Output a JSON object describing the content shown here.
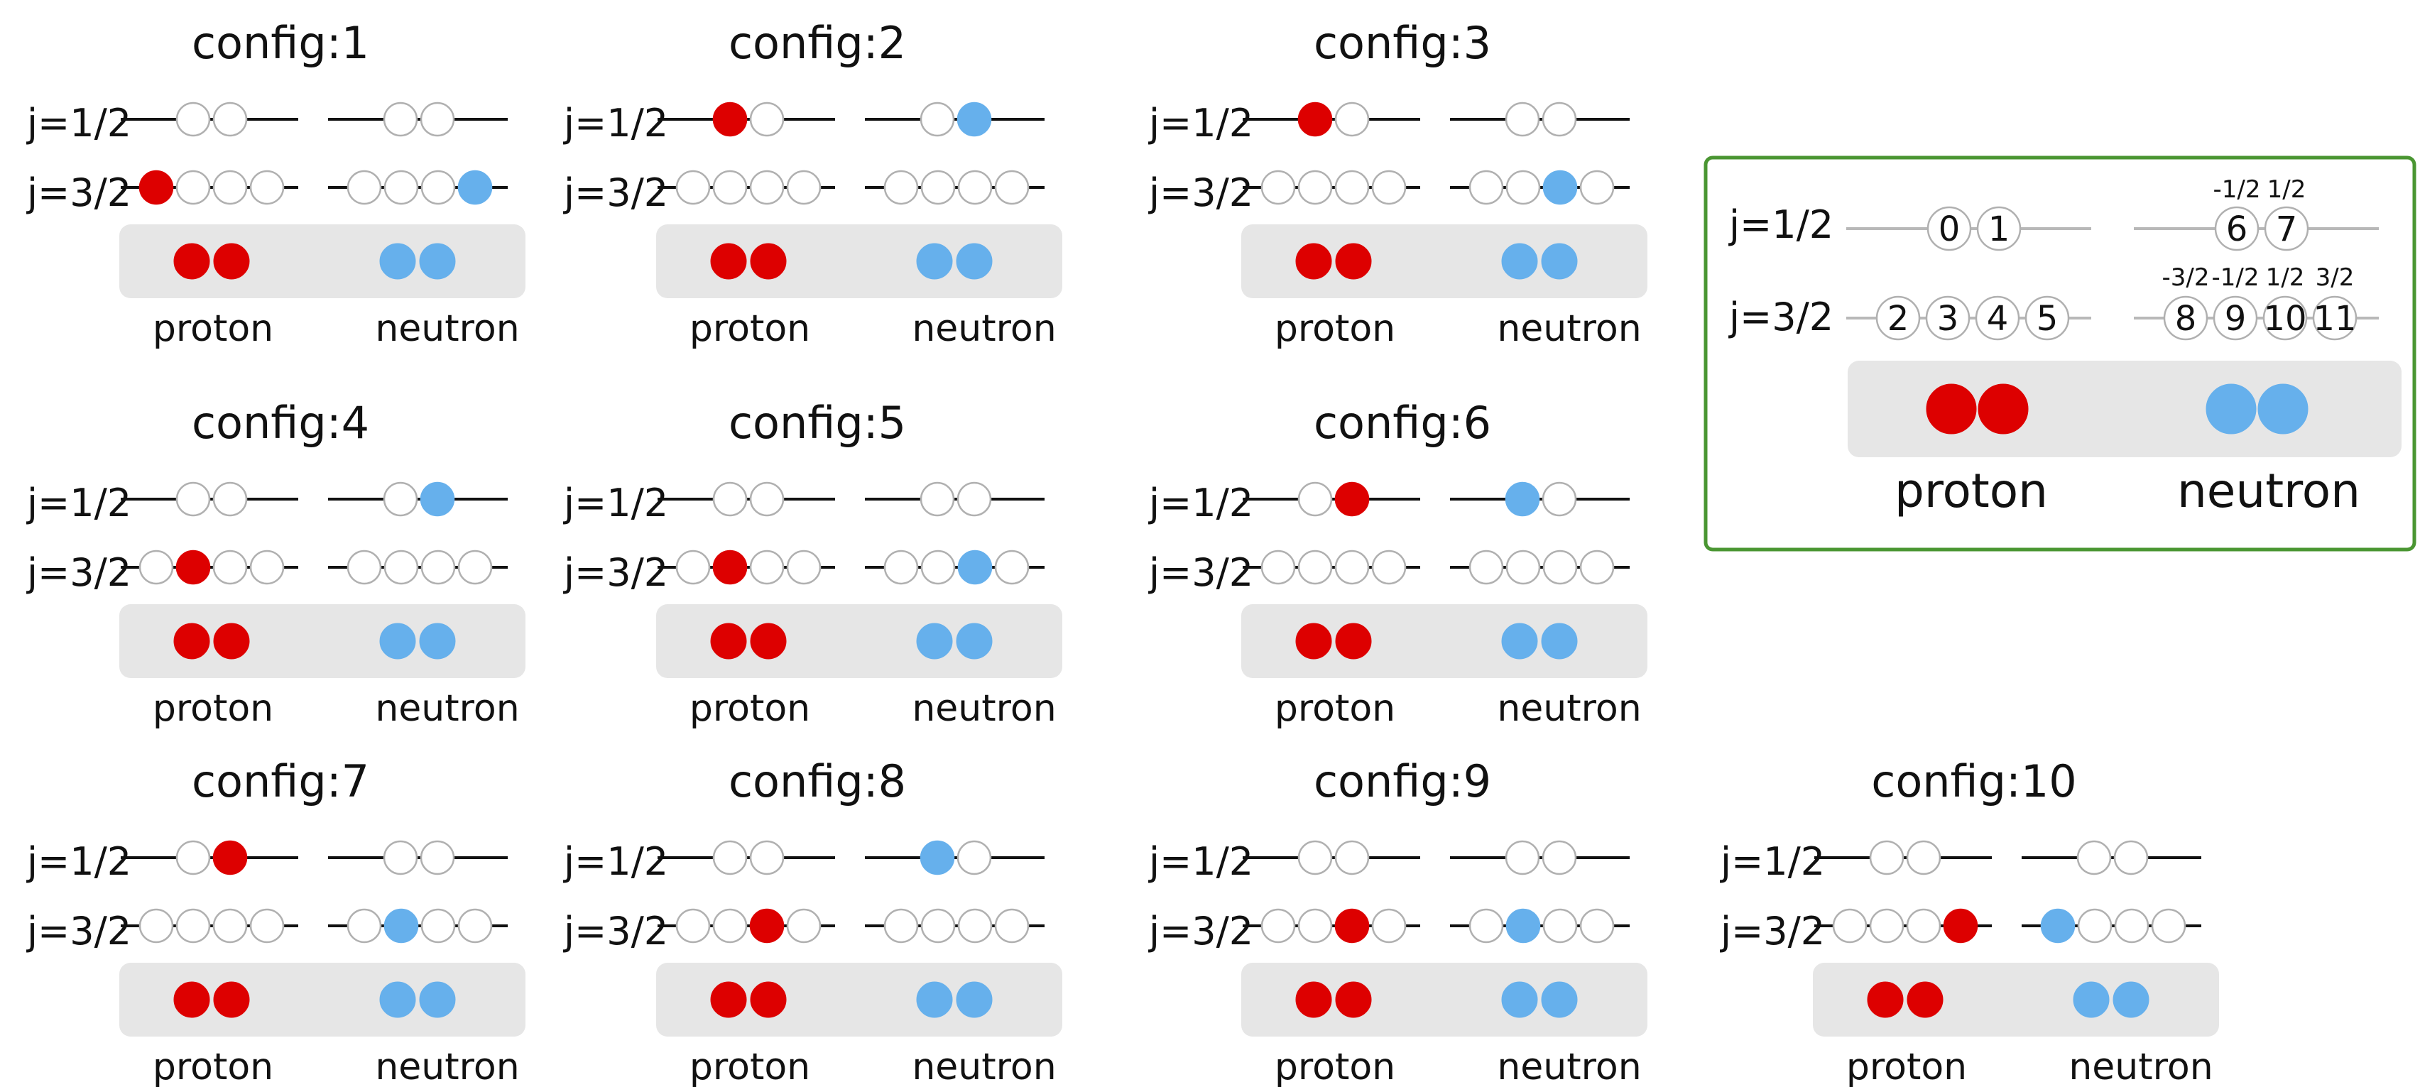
{
  "colors": {
    "proton": "#dd0000",
    "neutron": "#66b0ec",
    "empty_orbit": "#b0b0b0",
    "legend_border": "#4a9632",
    "panel_bg": "#e6e6e6"
  },
  "labels": {
    "j_half": "j=1/2",
    "j_three_half": "j=3/2",
    "proton": "proton",
    "neutron": "neutron"
  },
  "configs": [
    {
      "title": "config:1",
      "proton_j12": [],
      "proton_j32": [
        0
      ],
      "neutron_j12": [],
      "neutron_j32": [
        3
      ]
    },
    {
      "title": "config:2",
      "proton_j12": [
        0
      ],
      "proton_j32": [],
      "neutron_j12": [
        1
      ],
      "neutron_j32": []
    },
    {
      "title": "config:3",
      "proton_j12": [
        0
      ],
      "proton_j32": [],
      "neutron_j12": [],
      "neutron_j32": [
        2
      ]
    },
    {
      "title": "config:4",
      "proton_j12": [],
      "proton_j32": [
        1
      ],
      "neutron_j12": [
        1
      ],
      "neutron_j32": []
    },
    {
      "title": "config:5",
      "proton_j12": [],
      "proton_j32": [
        1
      ],
      "neutron_j12": [],
      "neutron_j32": [
        2
      ]
    },
    {
      "title": "config:6",
      "proton_j12": [
        1
      ],
      "proton_j32": [],
      "neutron_j12": [
        0
      ],
      "neutron_j32": []
    },
    {
      "title": "config:7",
      "proton_j12": [
        1
      ],
      "proton_j32": [],
      "neutron_j12": [],
      "neutron_j32": [
        1
      ]
    },
    {
      "title": "config:8",
      "proton_j12": [],
      "proton_j32": [
        2
      ],
      "neutron_j12": [
        0
      ],
      "neutron_j32": []
    },
    {
      "title": "config:9",
      "proton_j12": [],
      "proton_j32": [
        2
      ],
      "neutron_j12": [],
      "neutron_j32": [
        1
      ]
    },
    {
      "title": "config:10",
      "proton_j12": [],
      "proton_j32": [
        3
      ],
      "neutron_j12": [],
      "neutron_j32": [
        0
      ]
    }
  ],
  "legend": {
    "j_half": "j=1/2",
    "j_three_half": "j=3/2",
    "proton_j12_indices": [
      "0",
      "1"
    ],
    "proton_j32_indices": [
      "2",
      "3",
      "4",
      "5"
    ],
    "neutron_j12_indices": [
      "6",
      "7"
    ],
    "neutron_j32_indices": [
      "8",
      "9",
      "10",
      "11"
    ],
    "neutron_j12_m": [
      "-1/2",
      "1/2"
    ],
    "neutron_j32_m": [
      "-3/2",
      "-1/2",
      "1/2",
      "3/2"
    ],
    "proton": "proton",
    "neutron": "neutron"
  }
}
